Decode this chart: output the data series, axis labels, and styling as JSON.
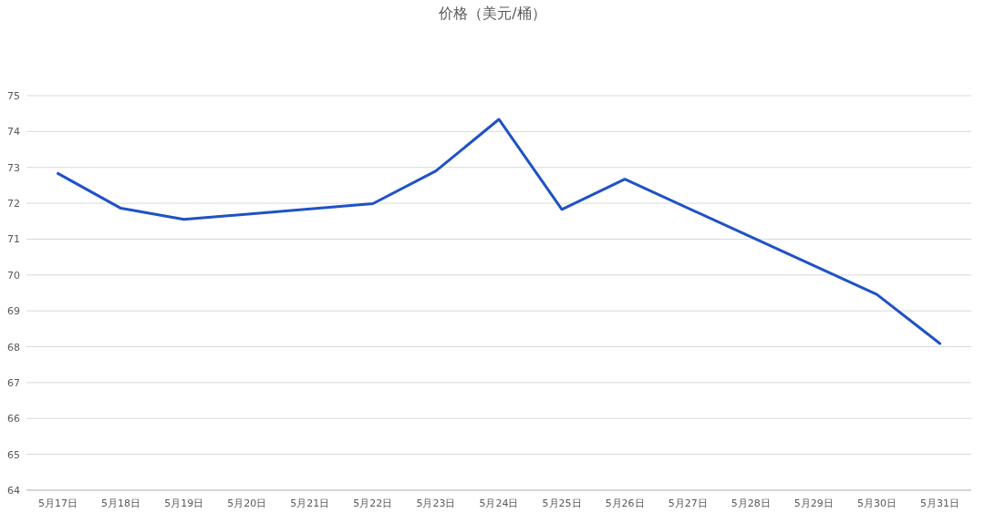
{
  "chart_data": {
    "type": "line",
    "title": "价格（美元/桶）",
    "categories": [
      "5月17日",
      "5月18日",
      "5月19日",
      "5月20日",
      "5月21日",
      "5月22日",
      "5月23日",
      "5月24日",
      "5月25日",
      "5月26日",
      "5月27日",
      "5月28日",
      "5月29日",
      "5月30日",
      "5月31日"
    ],
    "series": [
      {
        "color": "#1f52c4",
        "values": [
          72.83,
          71.86,
          71.55,
          null,
          null,
          71.99,
          72.9,
          74.34,
          71.83,
          72.67,
          null,
          null,
          null,
          69.46,
          68.09
        ]
      }
    ],
    "ylim": [
      64,
      75
    ],
    "yticks": [
      64,
      65,
      66,
      67,
      68,
      69,
      70,
      71,
      72,
      73,
      74,
      75
    ],
    "grid": "y",
    "marker": "none",
    "line_style": "solid"
  }
}
